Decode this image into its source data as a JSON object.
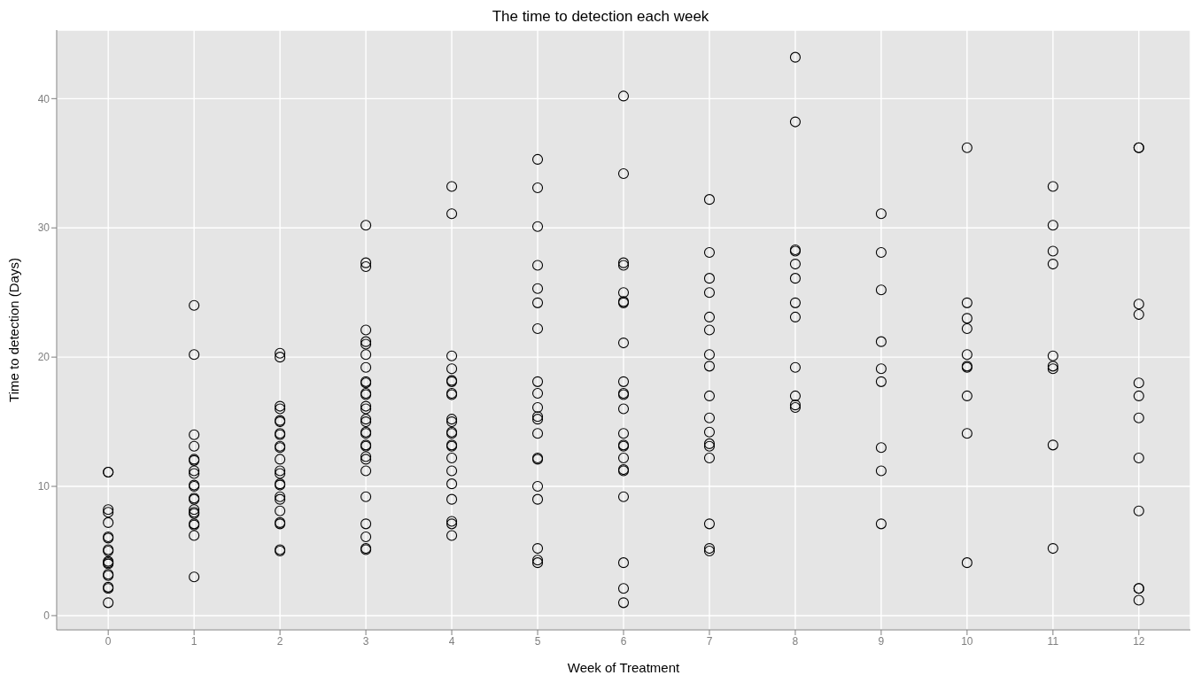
{
  "chart_data": {
    "type": "scatter",
    "title": "The time to detection each week",
    "xlabel": "Week of Treatment",
    "ylabel": "Time to detection (Days)",
    "xlim": [
      -0.6,
      12.6
    ],
    "xticks": [
      0,
      1,
      2,
      3,
      4,
      5,
      6,
      7,
      8,
      9,
      10,
      11,
      12
    ],
    "ylim": [
      -1.1,
      45.3
    ],
    "yticks": [
      0,
      10,
      20,
      30,
      40
    ],
    "grid": true,
    "marker": "circle",
    "series": [
      {
        "color": "#000000",
        "x": [
          0,
          0,
          0,
          0,
          0,
          0,
          0,
          0,
          0,
          0,
          0,
          0,
          0,
          0,
          0,
          0,
          0,
          1,
          1,
          1,
          1,
          1,
          1,
          1,
          1,
          1,
          1,
          1,
          1,
          1,
          1,
          1,
          1,
          1,
          1,
          1,
          2,
          2,
          2,
          2,
          2,
          2,
          2,
          2,
          2,
          2,
          2,
          2,
          2,
          2,
          2,
          2,
          2,
          2,
          2,
          2,
          2,
          2,
          3,
          3,
          3,
          3,
          3,
          3,
          3,
          3,
          3,
          3,
          3,
          3,
          3,
          3,
          3,
          3,
          3,
          3,
          3,
          3,
          3,
          3,
          3,
          3,
          3,
          3,
          3,
          3,
          4,
          4,
          4,
          4,
          4,
          4,
          4,
          4,
          4,
          4,
          4,
          4,
          4,
          4,
          4,
          4,
          4,
          4,
          4,
          4,
          4,
          5,
          5,
          5,
          5,
          5,
          5,
          5,
          5,
          5,
          5,
          5,
          5,
          5,
          5,
          5,
          5,
          5,
          5,
          5,
          5,
          6,
          6,
          6,
          6,
          6,
          6,
          6,
          6,
          6,
          6,
          6,
          6,
          6,
          6,
          6,
          6,
          6,
          6,
          6,
          6,
          6,
          6,
          7,
          7,
          7,
          7,
          7,
          7,
          7,
          7,
          7,
          7,
          7,
          7,
          7,
          7,
          7,
          7,
          7,
          8,
          8,
          8,
          8,
          8,
          8,
          8,
          8,
          8,
          8,
          8,
          8,
          9,
          9,
          9,
          9,
          9,
          9,
          9,
          9,
          9,
          10,
          10,
          10,
          10,
          10,
          10,
          10,
          10,
          10,
          10,
          11,
          11,
          11,
          11,
          11,
          11,
          11,
          11,
          11,
          12,
          12,
          12,
          12,
          12,
          12,
          12,
          12,
          12,
          12,
          12,
          12
        ],
        "values": [
          11.1,
          11.1,
          8.2,
          8.0,
          7.2,
          6.0,
          6.1,
          5.1,
          5.0,
          4.2,
          4.0,
          4.1,
          3.2,
          3.1,
          2.2,
          2.1,
          1.0,
          24.0,
          20.2,
          14.0,
          13.1,
          12.1,
          12.0,
          11.2,
          11.0,
          10.1,
          10.0,
          9.1,
          9.0,
          8.2,
          8.0,
          7.9,
          7.1,
          7.0,
          6.2,
          3.0,
          20.3,
          20.0,
          16.2,
          16.0,
          15.1,
          15.0,
          14.1,
          14.0,
          13.1,
          13.0,
          12.1,
          11.2,
          11.0,
          10.2,
          10.1,
          9.2,
          9.0,
          8.1,
          7.2,
          7.1,
          5.1,
          5.0,
          30.2,
          27.3,
          27.0,
          22.1,
          21.2,
          21.0,
          20.2,
          19.2,
          18.1,
          18.0,
          17.2,
          17.1,
          16.2,
          16.0,
          15.2,
          15.0,
          14.2,
          14.1,
          13.2,
          13.1,
          12.3,
          12.1,
          11.2,
          9.2,
          7.1,
          6.1,
          5.2,
          5.1,
          33.2,
          31.1,
          20.1,
          19.1,
          18.2,
          18.1,
          17.2,
          17.1,
          15.2,
          15.0,
          14.2,
          14.1,
          13.2,
          13.1,
          12.2,
          11.2,
          10.2,
          9.0,
          7.3,
          7.1,
          6.2,
          35.3,
          33.1,
          30.1,
          27.1,
          25.3,
          24.2,
          22.2,
          18.1,
          17.2,
          16.1,
          15.4,
          15.2,
          14.1,
          12.2,
          12.1,
          10.0,
          9.0,
          5.2,
          4.3,
          4.1,
          40.2,
          34.2,
          27.3,
          27.1,
          25.0,
          24.3,
          24.2,
          21.1,
          18.1,
          17.2,
          17.1,
          16.0,
          14.1,
          13.2,
          13.1,
          12.2,
          11.3,
          11.2,
          9.2,
          4.1,
          2.1,
          1.0,
          32.2,
          28.1,
          26.1,
          25.0,
          23.1,
          22.1,
          20.2,
          19.3,
          17.0,
          15.3,
          14.2,
          13.3,
          13.1,
          12.2,
          7.1,
          5.2,
          5.0,
          43.2,
          38.2,
          28.3,
          28.2,
          27.2,
          26.1,
          24.2,
          23.1,
          19.2,
          17.0,
          16.3,
          16.1,
          31.1,
          28.1,
          25.2,
          21.2,
          19.1,
          18.1,
          13.0,
          11.2,
          7.1,
          36.2,
          24.2,
          23.0,
          22.2,
          20.2,
          19.3,
          19.2,
          17.0,
          14.1,
          4.1,
          33.2,
          30.2,
          28.2,
          27.2,
          20.1,
          19.3,
          19.1,
          13.2,
          5.2,
          36.2,
          36.2,
          24.1,
          23.3,
          18.0,
          17.0,
          15.3,
          12.2,
          8.1,
          2.1,
          2.1,
          1.2
        ]
      }
    ]
  }
}
